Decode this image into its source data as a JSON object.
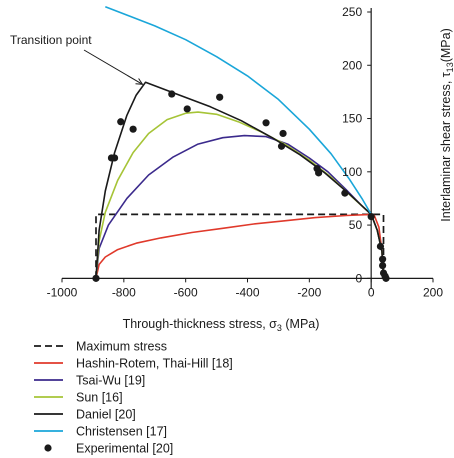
{
  "chart_data": {
    "type": "line",
    "xlabel": "Through-thickness stress, σ",
    "xlabel_sub": "3",
    "xlabel_unit": " (MPa)",
    "ylabel": "Interlaminar shear stress, τ",
    "ylabel_sub": "13",
    "ylabel_unit": "(MPa)",
    "xlim": [
      -1000,
      200
    ],
    "ylim": [
      -10,
      250
    ],
    "x_ticks": [
      -1000,
      -800,
      -600,
      -400,
      -200,
      0,
      200
    ],
    "y_ticks": [
      0,
      50,
      100,
      150,
      200,
      250
    ],
    "grid": false,
    "legend_position": "bottom",
    "annotation": {
      "text": "Transition point",
      "target": [
        -730,
        184
      ]
    },
    "series": [
      {
        "name": "Maximum stress",
        "color": "#1a1a1a",
        "style": "dashed",
        "points": [
          [
            -890,
            0
          ],
          [
            -890,
            60
          ],
          [
            0,
            60
          ],
          [
            40,
            60
          ],
          [
            40,
            0
          ]
        ]
      },
      {
        "name": "Hashin-Rotem, Thai-Hill [18]",
        "color": "#e0392b",
        "style": "solid",
        "points": [
          [
            -890,
            0
          ],
          [
            -880,
            13
          ],
          [
            -860,
            20
          ],
          [
            -820,
            27
          ],
          [
            -760,
            33
          ],
          [
            -680,
            38
          ],
          [
            -580,
            43
          ],
          [
            -480,
            47
          ],
          [
            -380,
            51
          ],
          [
            -280,
            54
          ],
          [
            -180,
            57
          ],
          [
            -80,
            59
          ],
          [
            0,
            60
          ],
          [
            10,
            59
          ],
          [
            25,
            48
          ],
          [
            35,
            25
          ],
          [
            40,
            0
          ]
        ]
      },
      {
        "name": "Tsai-Wu [19]",
        "color": "#3b2a8c",
        "style": "solid",
        "points": [
          [
            -890,
            0
          ],
          [
            -880,
            28
          ],
          [
            -850,
            50
          ],
          [
            -790,
            75
          ],
          [
            -720,
            97
          ],
          [
            -640,
            114
          ],
          [
            -560,
            126
          ],
          [
            -480,
            132
          ],
          [
            -410,
            134
          ],
          [
            -340,
            133
          ],
          [
            -270,
            126
          ],
          [
            -200,
            113
          ],
          [
            -140,
            100
          ],
          [
            -80,
            83
          ],
          [
            -30,
            68
          ],
          [
            0,
            60
          ],
          [
            20,
            45
          ],
          [
            35,
            25
          ],
          [
            40,
            0
          ]
        ]
      },
      {
        "name": "Sun [16]",
        "color": "#a6c437",
        "style": "solid",
        "points": [
          [
            -890,
            0
          ],
          [
            -880,
            35
          ],
          [
            -860,
            62
          ],
          [
            -820,
            92
          ],
          [
            -770,
            118
          ],
          [
            -720,
            136
          ],
          [
            -660,
            149
          ],
          [
            -600,
            155
          ],
          [
            -560,
            156
          ],
          [
            -500,
            154
          ],
          [
            -430,
            147
          ],
          [
            -360,
            138
          ],
          [
            -280,
            126
          ],
          [
            -200,
            111
          ],
          [
            -130,
            95
          ],
          [
            -60,
            76
          ],
          [
            0,
            60
          ],
          [
            20,
            45
          ],
          [
            35,
            25
          ],
          [
            40,
            0
          ]
        ]
      },
      {
        "name": "Daniel [20]",
        "color": "#1a1a1a",
        "style": "solid",
        "points": [
          [
            -890,
            0
          ],
          [
            -880,
            45
          ],
          [
            -860,
            82
          ],
          [
            -830,
            118
          ],
          [
            -790,
            153
          ],
          [
            -760,
            172
          ],
          [
            -730,
            184
          ],
          [
            -620,
            172
          ],
          [
            -520,
            161
          ],
          [
            -420,
            148
          ],
          [
            -320,
            132
          ],
          [
            -230,
            116
          ],
          [
            -150,
            99
          ],
          [
            -70,
            79
          ],
          [
            0,
            60
          ],
          [
            20,
            45
          ],
          [
            35,
            25
          ],
          [
            40,
            0
          ]
        ]
      },
      {
        "name": "Christensen [17]",
        "color": "#1aa6d9",
        "style": "solid",
        "points": [
          [
            -860,
            255
          ],
          [
            -780,
            246
          ],
          [
            -700,
            237
          ],
          [
            -600,
            224
          ],
          [
            -500,
            208
          ],
          [
            -400,
            190
          ],
          [
            -300,
            168
          ],
          [
            -200,
            140
          ],
          [
            -130,
            117
          ],
          [
            -70,
            93
          ],
          [
            -30,
            75
          ],
          [
            0,
            60
          ]
        ]
      },
      {
        "name": "Experimental [20]",
        "color": "#1a1a1a",
        "style": "markers",
        "points": [
          [
            -890,
            0
          ],
          [
            -840,
            113
          ],
          [
            -830,
            113
          ],
          [
            -810,
            147
          ],
          [
            -770,
            140
          ],
          [
            -645,
            173
          ],
          [
            -595,
            159
          ],
          [
            -490,
            170
          ],
          [
            -340,
            146
          ],
          [
            -290,
            124
          ],
          [
            -285,
            136
          ],
          [
            -175,
            103
          ],
          [
            -170,
            99
          ],
          [
            -85,
            80
          ],
          [
            0,
            58
          ],
          [
            30,
            30
          ],
          [
            37,
            18
          ],
          [
            37,
            12
          ],
          [
            40,
            5
          ],
          [
            45,
            2
          ],
          [
            48,
            0
          ]
        ]
      }
    ]
  }
}
